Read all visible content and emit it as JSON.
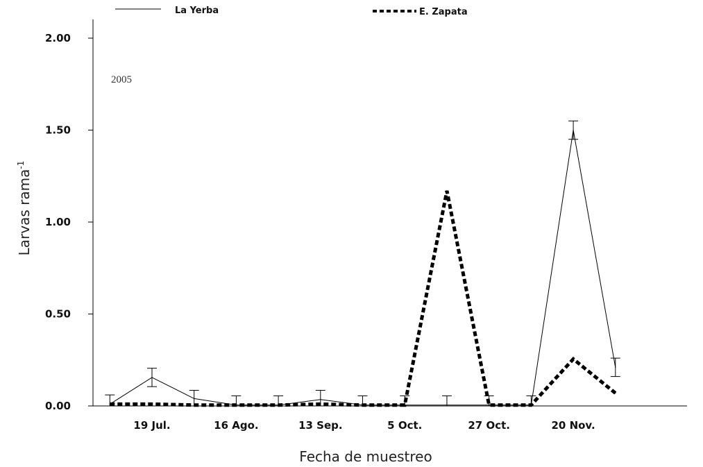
{
  "chart_data": {
    "type": "line",
    "annotation": "2005",
    "xlabel": "Fecha de muestreo",
    "ylabel": "Larvas  rama",
    "ylabel_sup": "-1",
    "ylim": [
      0,
      2
    ],
    "yticks": [
      "0.00",
      "0.50",
      "1.00",
      "1.50",
      "2.00"
    ],
    "ytick_values": [
      0,
      0.5,
      1.0,
      1.5,
      2.0
    ],
    "x": [
      1,
      2,
      3,
      4,
      5,
      6,
      7,
      8,
      9,
      10,
      11,
      12,
      13,
      14
    ],
    "xlim": [
      0.6,
      14.7
    ],
    "xtick_labels": [
      {
        "x": 2,
        "label": "19 Jul."
      },
      {
        "x": 4,
        "label": "16 Ago."
      },
      {
        "x": 6,
        "label": "13 Sep."
      },
      {
        "x": 8,
        "label": "5 Oct."
      },
      {
        "x": 10,
        "label": "27 Oct."
      },
      {
        "x": 12,
        "label": "20 Nov."
      }
    ],
    "legend_position": "top",
    "grid": false,
    "series": [
      {
        "name": "La Yerba",
        "style": "solid",
        "color": "#000000",
        "x": [
          1,
          2,
          3,
          4,
          5,
          6,
          7,
          8,
          9,
          10,
          11,
          12,
          13
        ],
        "values": [
          0.01,
          0.155,
          0.04,
          0.005,
          0.005,
          0.035,
          0.005,
          0.005,
          0.005,
          0.005,
          0.005,
          1.5,
          0.21
        ],
        "error": [
          0.05,
          0.05,
          0.045,
          0.05,
          0.05,
          0.05,
          0.05,
          0.05,
          0.05,
          0.05,
          0.05,
          0.05,
          0.05
        ]
      },
      {
        "name": "E. Zapata",
        "style": "dashed",
        "color": "#000000",
        "x": [
          1,
          2,
          3,
          4,
          5,
          6,
          7,
          8,
          9,
          10,
          11,
          12,
          13
        ],
        "values": [
          0.01,
          0.01,
          0.005,
          0.005,
          0.005,
          0.01,
          0.005,
          0.005,
          1.17,
          0.005,
          0.005,
          0.255,
          0.07
        ]
      }
    ]
  }
}
